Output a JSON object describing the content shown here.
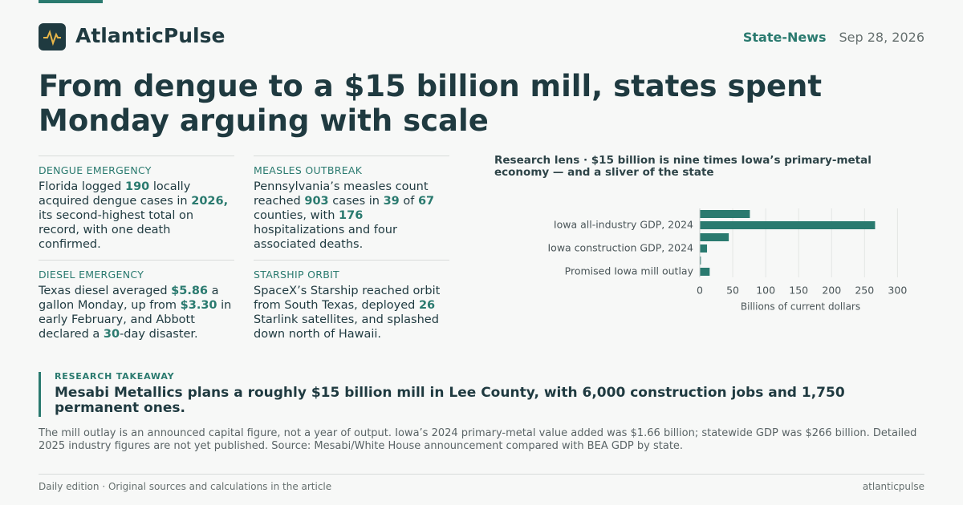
{
  "brand": "AtlanticPulse",
  "section": "State-News",
  "date": "Sep 28, 2026",
  "headline": "From dengue to a $15 billion mill, states spent Monday arguing with scale",
  "cards": [
    {
      "label": "DENGUE EMERGENCY",
      "text": [
        "Florida logged ",
        "190",
        " locally acquired dengue cases in ",
        "2026,",
        " its second-highest total on record, with one death confirmed."
      ]
    },
    {
      "label": "MEASLES OUTBREAK",
      "text": [
        "Pennsylvania’s measles count reached ",
        "903",
        " cases in ",
        "39",
        " of ",
        "67",
        " counties, with ",
        "176",
        " hospitalizations and four associated deaths."
      ]
    },
    {
      "label": "DIESEL EMERGENCY",
      "text": [
        "Texas diesel averaged ",
        "$5.86",
        " a gallon Monday, up from ",
        "$3.30",
        " in early February, and Abbott declared a ",
        "30",
        "-day disaster."
      ]
    },
    {
      "label": "STARSHIP ORBIT",
      "text": [
        "SpaceX’s Starship reached orbit from South Texas, deployed ",
        "26",
        " Starlink satellites, and splashed down north of Hawaii."
      ]
    }
  ],
  "chart_data": {
    "type": "hbar",
    "title": "Research lens · $15 billion is nine times Iowa’s primary-metal economy — and a sliver of the state",
    "categories": [
      "Iowa all-industry GDP, 2024",
      "Iowa construction GDP, 2024",
      "Promised Iowa mill outlay"
    ],
    "series": [
      {
        "color": "#2a7a6f",
        "values": [
          76,
          44,
          1.66
        ]
      },
      {
        "color": "#2a7a6f",
        "values": [
          266,
          11,
          15
        ]
      }
    ],
    "xlim": [
      0,
      330
    ],
    "xticks": [
      0,
      50,
      100,
      150,
      200,
      250,
      300
    ],
    "xlabel": "Billions of current dollars",
    "grid": true
  },
  "takeaway": {
    "label": "RESEARCH TAKEAWAY",
    "headline": "Mesabi Metallics plans a roughly $15 billion mill in Lee County, with 6,000 construction jobs and 1,750 permanent ones.",
    "note": "The mill outlay is an announced capital figure, not a year of output. Iowa’s 2024 primary-metal value added was $1.66 billion; statewide GDP was $266 billion. Detailed 2025 industry figures are not yet published. Source: Mesabi/White House announcement compared with BEA GDP by state."
  },
  "footer": {
    "left": "Daily edition · Original sources and calculations in the article",
    "right": "atlanticpulse"
  }
}
